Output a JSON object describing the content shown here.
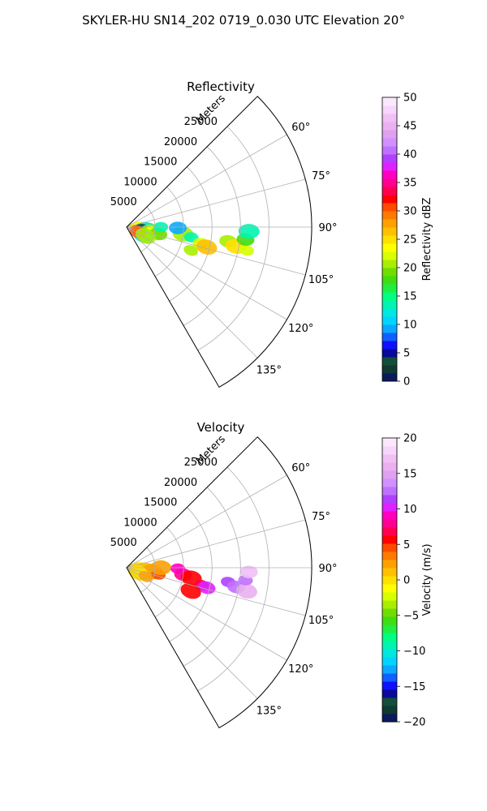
{
  "suptitle": "SKYLER-HU  SN14_202  0719_0.030 UTC Elevation 20°",
  "chart_data": [
    {
      "type": "polar-sector",
      "title": "Reflectivity",
      "radial_label": "Meters",
      "radial_ticks": [
        5000,
        10000,
        15000,
        20000,
        25000
      ],
      "rmax": 32500,
      "azimuth_range": [
        45,
        150
      ],
      "azimuth_ticks": [
        "60°",
        "75°",
        "90°",
        "105°",
        "120°",
        "135°"
      ],
      "azimuth_tick_values": [
        60,
        75,
        90,
        105,
        120,
        135
      ],
      "colorbar": {
        "label": "Reflectivity dBZ",
        "min": 0,
        "max": 50,
        "ticks": [
          "0",
          "5",
          "10",
          "15",
          "20",
          "25",
          "30",
          "35",
          "40",
          "45",
          "50"
        ],
        "colors": [
          "#0b1a5c",
          "#0f3a30",
          "#134e38",
          "#0a0a9a",
          "#1010ff",
          "#1060ff",
          "#0aa8ff",
          "#00d4ff",
          "#00e8e0",
          "#00f5b0",
          "#00ff80",
          "#20ee40",
          "#40dd10",
          "#70dd00",
          "#a8ee00",
          "#d8ff00",
          "#ffff00",
          "#ffe000",
          "#ffc000",
          "#ffa000",
          "#ff7a00",
          "#ff4a00",
          "#ff0000",
          "#ff0050",
          "#ff0090",
          "#ff00c0",
          "#e020ff",
          "#b040ff",
          "#c070ff",
          "#d090ff",
          "#e0a0f0",
          "#eab0f0",
          "#f0c0f5",
          "#f6d6fa",
          "#fbe8fd"
        ]
      },
      "echoes": [
        {
          "az": 96,
          "r": 1.5,
          "val": 22
        },
        {
          "az": 97,
          "r": 2.1,
          "val": 23
        },
        {
          "az": 98,
          "r": 2.4,
          "val": 24
        },
        {
          "az": 102,
          "r": 2.9,
          "val": 22
        },
        {
          "az": 95,
          "r": 4.0,
          "val": 21
        },
        {
          "az": 97,
          "r": 3.4,
          "val": 12
        },
        {
          "az": 97,
          "r": 2.7,
          "val": 3
        },
        {
          "az": 101,
          "r": 5.0,
          "val": 22
        },
        {
          "az": 102,
          "r": 4.3,
          "val": 20
        },
        {
          "az": 99,
          "r": 4.6,
          "val": 24
        },
        {
          "az": 102,
          "r": 5.7,
          "val": 19
        },
        {
          "az": 97,
          "r": 10.0,
          "val": 20
        },
        {
          "az": 99,
          "r": 11.5,
          "val": 14
        },
        {
          "az": 103,
          "r": 13.5,
          "val": 22
        },
        {
          "az": 104,
          "r": 14.5,
          "val": 26
        },
        {
          "az": 110,
          "r": 12.0,
          "val": 20
        },
        {
          "az": 98,
          "r": 18.0,
          "val": 21
        },
        {
          "az": 100,
          "r": 19.5,
          "val": 25
        },
        {
          "az": 101,
          "r": 21.5,
          "val": 22
        },
        {
          "az": 96,
          "r": 21.0,
          "val": 18
        },
        {
          "az": 92,
          "r": 21.5,
          "val": 14
        },
        {
          "az": 90,
          "r": 6.0,
          "val": 14
        },
        {
          "az": 91,
          "r": 9.0,
          "val": 9
        },
        {
          "az": 116,
          "r": 3.2,
          "val": 12
        },
        {
          "az": 112,
          "r": 2.6,
          "val": 25
        },
        {
          "az": 113,
          "r": 2.2,
          "val": 31
        },
        {
          "az": 115,
          "r": 3.7,
          "val": 20
        }
      ]
    },
    {
      "type": "polar-sector",
      "title": "Velocity",
      "radial_label": "Meters",
      "radial_ticks": [
        5000,
        10000,
        15000,
        20000,
        25000
      ],
      "rmax": 32500,
      "azimuth_range": [
        45,
        150
      ],
      "azimuth_ticks": [
        "60°",
        "75°",
        "90°",
        "105°",
        "120°",
        "135°"
      ],
      "azimuth_tick_values": [
        60,
        75,
        90,
        105,
        120,
        135
      ],
      "colorbar": {
        "label": "Velocity (m/s)",
        "min": -20,
        "max": 20,
        "ticks": [
          "−20",
          "−15",
          "−10",
          "−5",
          "0",
          "5",
          "10",
          "15",
          "20"
        ],
        "colors": [
          "#0b1a5c",
          "#0f3a30",
          "#134e38",
          "#0a0a9a",
          "#1010ff",
          "#1060ff",
          "#0aa8ff",
          "#00d4ff",
          "#00e8e0",
          "#00f5b0",
          "#00ff80",
          "#20ee40",
          "#40dd10",
          "#70dd00",
          "#a8ee00",
          "#d8ff00",
          "#ffff00",
          "#ffe000",
          "#ffc000",
          "#ffa000",
          "#ff7a00",
          "#ff4a00",
          "#ff0000",
          "#ff0050",
          "#ff0090",
          "#ff00c0",
          "#e020ff",
          "#b040ff",
          "#c070ff",
          "#d090ff",
          "#e0a0f0",
          "#eab0f0",
          "#f0c0f5",
          "#f6d6fa",
          "#fbe8fd"
        ]
      },
      "echoes": [
        {
          "az": 96,
          "r": 1.5,
          "val": 1
        },
        {
          "az": 97,
          "r": 2.1,
          "val": 1
        },
        {
          "az": 98,
          "r": 2.4,
          "val": 0
        },
        {
          "az": 102,
          "r": 2.9,
          "val": 1
        },
        {
          "az": 95,
          "r": 4.0,
          "val": 2
        },
        {
          "az": 97,
          "r": 3.4,
          "val": 1
        },
        {
          "az": 101,
          "r": 5.0,
          "val": 3
        },
        {
          "az": 102,
          "r": 4.3,
          "val": 1
        },
        {
          "az": 99,
          "r": 4.6,
          "val": 2
        },
        {
          "az": 102,
          "r": 5.7,
          "val": 4
        },
        {
          "az": 97,
          "r": 10.0,
          "val": 8
        },
        {
          "az": 99,
          "r": 11.5,
          "val": 6
        },
        {
          "az": 103,
          "r": 13.5,
          "val": 7
        },
        {
          "az": 104,
          "r": 14.5,
          "val": 10
        },
        {
          "az": 110,
          "r": 12.0,
          "val": 6
        },
        {
          "az": 98,
          "r": 18.0,
          "val": 11
        },
        {
          "az": 100,
          "r": 19.5,
          "val": 13
        },
        {
          "az": 101,
          "r": 21.5,
          "val": 16
        },
        {
          "az": 96,
          "r": 21.0,
          "val": 12
        },
        {
          "az": 92,
          "r": 21.5,
          "val": 17
        },
        {
          "az": 90,
          "r": 6.0,
          "val": 2
        },
        {
          "az": 91,
          "r": 9.0,
          "val": 9
        },
        {
          "az": 112,
          "r": 2.6,
          "val": 1
        },
        {
          "az": 113,
          "r": 2.2,
          "val": 0
        },
        {
          "az": 115,
          "r": 3.7,
          "val": 2
        }
      ]
    }
  ]
}
